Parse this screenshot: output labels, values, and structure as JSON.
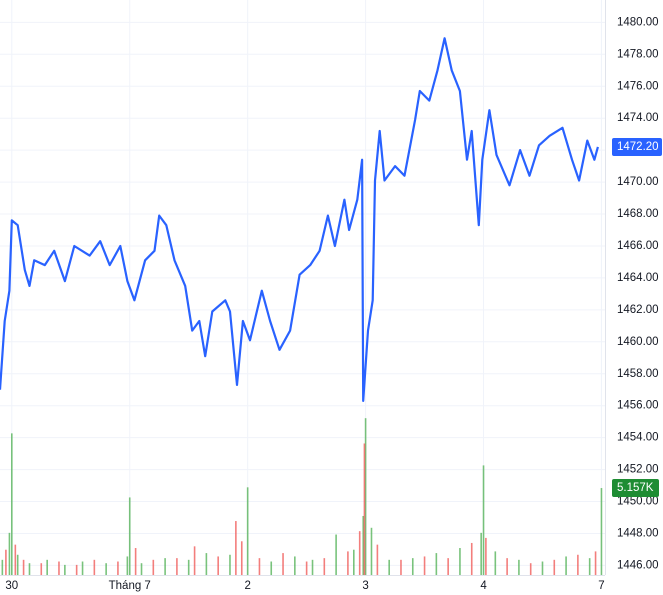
{
  "chart_data": {
    "type": "line",
    "xlim": [
      -0.1,
      5.03
    ],
    "xticks": [
      {
        "value": 0,
        "label": "30"
      },
      {
        "value": 1,
        "label": "Tháng 7"
      },
      {
        "value": 2,
        "label": "2"
      },
      {
        "value": 3,
        "label": "3"
      },
      {
        "value": 4,
        "label": "4"
      },
      {
        "value": 5,
        "label": "7"
      }
    ],
    "ylim": [
      1445.4,
      1481.4
    ],
    "yticks": [
      {
        "value": 1446,
        "label": "1446.00"
      },
      {
        "value": 1448,
        "label": "1448.00"
      },
      {
        "value": 1450,
        "label": "1450.00"
      },
      {
        "value": 1452,
        "label": "1452.00"
      },
      {
        "value": 1454,
        "label": "1454.00"
      },
      {
        "value": 1456,
        "label": "1456.00"
      },
      {
        "value": 1458,
        "label": "1458.00"
      },
      {
        "value": 1460,
        "label": "1460.00"
      },
      {
        "value": 1462,
        "label": "1462.00"
      },
      {
        "value": 1464,
        "label": "1464.00"
      },
      {
        "value": 1466,
        "label": "1466.00"
      },
      {
        "value": 1468,
        "label": "1468.00"
      },
      {
        "value": 1470,
        "label": "1470.00"
      },
      {
        "value": 1472,
        "label": "1472.00"
      },
      {
        "value": 1474,
        "label": "1474.00"
      },
      {
        "value": 1476,
        "label": "1476.00"
      },
      {
        "value": 1478,
        "label": "1478.00"
      },
      {
        "value": 1480,
        "label": "1480.00"
      }
    ],
    "y2lim": [
      0,
      34100
    ],
    "grid": true,
    "series": [
      {
        "color": "#2962ff",
        "x": [
          -0.1,
          -0.06,
          -0.02,
          0,
          0.05,
          0.11,
          0.15,
          0.19,
          0.28,
          0.36,
          0.45,
          0.53,
          0.66,
          0.75,
          0.83,
          0.92,
          0.98,
          1.04,
          1.13,
          1.21,
          1.25,
          1.31,
          1.38,
          1.47,
          1.53,
          1.59,
          1.64,
          1.7,
          1.81,
          1.85,
          1.91,
          1.96,
          2.02,
          2.12,
          2.19,
          2.27,
          2.36,
          2.44,
          2.53,
          2.61,
          2.68,
          2.74,
          2.82,
          2.86,
          2.93,
          2.97,
          2.98,
          3.02,
          3.06,
          3.08,
          3.12,
          3.16,
          3.25,
          3.33,
          3.42,
          3.46,
          3.54,
          3.61,
          3.67,
          3.73,
          3.8,
          3.86,
          3.9,
          3.96,
          3.99,
          4.05,
          4.11,
          4.22,
          4.31,
          4.39,
          4.47,
          4.56,
          4.67,
          4.75,
          4.81,
          4.88,
          4.94,
          4.97
        ],
        "values": [
          1457.0,
          1461.3,
          1463.2,
          1467.6,
          1467.3,
          1464.5,
          1463.5,
          1465.1,
          1464.8,
          1465.7,
          1463.8,
          1466.0,
          1465.4,
          1466.3,
          1464.8,
          1466.0,
          1463.8,
          1462.6,
          1465.1,
          1465.7,
          1467.9,
          1467.3,
          1465.1,
          1463.5,
          1460.7,
          1461.3,
          1459.1,
          1461.9,
          1462.6,
          1461.9,
          1457.3,
          1461.3,
          1460.1,
          1463.2,
          1461.3,
          1459.5,
          1460.7,
          1464.2,
          1464.8,
          1465.7,
          1467.9,
          1466.0,
          1468.9,
          1467.0,
          1468.9,
          1471.4,
          1456.3,
          1460.7,
          1462.6,
          1470.1,
          1473.2,
          1470.1,
          1471.0,
          1470.4,
          1473.9,
          1475.7,
          1475.1,
          1477.0,
          1479.0,
          1477.0,
          1475.7,
          1471.4,
          1473.2,
          1467.3,
          1471.4,
          1474.5,
          1471.7,
          1469.8,
          1472.0,
          1470.4,
          1472.3,
          1472.9,
          1473.4,
          1471.4,
          1470.1,
          1472.6,
          1471.4,
          1472.2
        ]
      },
      {
        "color": "#4caf50",
        "axis": "y2",
        "x": [
          -0.08,
          -0.02,
          0,
          0.05,
          0.15,
          0.3,
          0.45,
          0.6,
          0.8,
          0.98,
          1,
          1.1,
          1.3,
          1.5,
          1.65,
          1.85,
          2,
          2.2,
          2.4,
          2.55,
          2.75,
          2.9,
          2.98,
          3,
          3.05,
          3.2,
          3.4,
          3.6,
          3.8,
          3.98,
          4,
          4.1,
          4.3,
          4.5,
          4.7,
          4.9,
          5
        ],
        "values": [
          900,
          2500,
          8400,
          1200,
          700,
          900,
          600,
          800,
          700,
          1100,
          4600,
          700,
          1000,
          900,
          1300,
          1200,
          5200,
          800,
          1100,
          900,
          2400,
          1500,
          3500,
          9300,
          2800,
          900,
          1000,
          1300,
          1600,
          2500,
          6500,
          1400,
          900,
          800,
          1100,
          1000,
          5157
        ]
      },
      {
        "color": "#ef5350",
        "axis": "y2",
        "x": [
          -0.05,
          0.03,
          0.1,
          0.25,
          0.4,
          0.55,
          0.7,
          0.9,
          1.05,
          1.2,
          1.4,
          1.55,
          1.75,
          1.9,
          1.95,
          2.1,
          2.3,
          2.5,
          2.65,
          2.85,
          2.95,
          2.99,
          3.1,
          3.3,
          3.5,
          3.7,
          3.9,
          4.02,
          4.2,
          4.4,
          4.6,
          4.8,
          4.95
        ],
        "values": [
          1500,
          1800,
          900,
          700,
          800,
          600,
          900,
          800,
          1600,
          900,
          1000,
          1700,
          1100,
          3200,
          2000,
          1000,
          1300,
          800,
          1000,
          1400,
          2600,
          7800,
          1800,
          900,
          1100,
          1000,
          1900,
          2200,
          1000,
          700,
          900,
          1200,
          1400
        ]
      }
    ],
    "price_label": {
      "value": 1472.2,
      "label": "1472.20"
    },
    "volume_label": {
      "value": 5157,
      "label": "5.157K",
      "color": "#1e8c33"
    }
  }
}
